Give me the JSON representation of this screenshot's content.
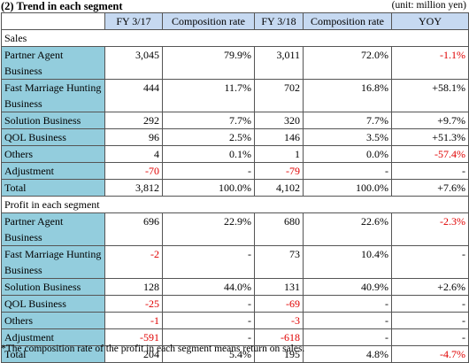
{
  "title": "(2) Trend in each segment",
  "unit": "(unit: million yen)",
  "table": {
    "header": [
      "",
      "FY 3/17",
      "Composition rate",
      "FY 3/18",
      "Composition rate",
      "YOY"
    ],
    "rows": [
      [
        "Sales"
      ],
      [
        "Partner Agent Business",
        "3,045",
        "79.9%",
        "3,011",
        "72.0%",
        "-1.1%"
      ],
      [
        "Fast Marriage Hunting Business",
        "444",
        "11.7%",
        "702",
        "16.8%",
        "+58.1%"
      ],
      [
        "Solution Business",
        "292",
        "7.7%",
        "320",
        "7.7%",
        "+9.7%"
      ],
      [
        "QOL Business",
        "96",
        "2.5%",
        "146",
        "3.5%",
        "+51.3%"
      ],
      [
        "Others",
        "4",
        "0.1%",
        "1",
        "0.0%",
        "-57.4%"
      ],
      [
        "Adjustment",
        "-70",
        "-",
        "-79",
        "-",
        "-"
      ],
      [
        "Total",
        "3,812",
        "100.0%",
        "4,102",
        "100.0%",
        "+7.6%"
      ],
      [
        "Profit in each segment"
      ],
      [
        "Partner Agent Business",
        "696",
        "22.9%",
        "680",
        "22.6%",
        "-2.3%"
      ],
      [
        "Fast Marriage Hunting Business",
        "-2",
        "-",
        "73",
        "10.4%",
        "-"
      ],
      [
        "Solution Business",
        "128",
        "44.0%",
        "131",
        "40.9%",
        "+2.6%"
      ],
      [
        "QOL Business",
        "-25",
        "-",
        "-69",
        "-",
        "-"
      ],
      [
        "Others",
        "-1",
        "-",
        "-3",
        "-",
        "-"
      ],
      [
        "Adjustment",
        "-591",
        "-",
        "-618",
        "-",
        "-"
      ],
      [
        "Total",
        "204",
        "5.4%",
        "195",
        "4.8%",
        "-4.7%"
      ]
    ]
  },
  "footnote": "*The composition rate of the profit in each segment means return on sales."
}
